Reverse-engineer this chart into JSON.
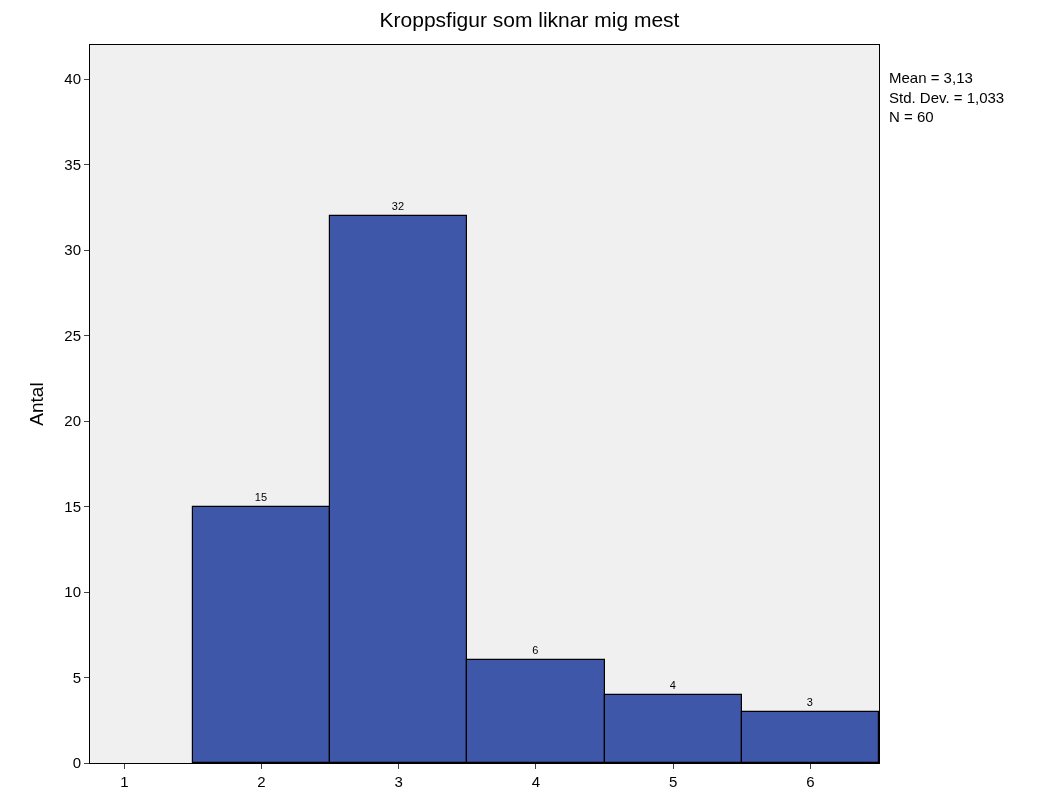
{
  "chart_data": {
    "type": "histogram",
    "title": "Kroppsfigur som liknar mig mest",
    "ylabel": "Antal",
    "bins": [
      1.5,
      2.5,
      3.5,
      4.5,
      5.5,
      6.5
    ],
    "values": [
      15,
      32,
      6,
      4,
      3
    ],
    "color": "#3f57a8",
    "xlim": [
      0.75,
      6.5
    ],
    "xticks": [
      1,
      2,
      3,
      4,
      5,
      6
    ],
    "ylim": [
      0,
      42
    ],
    "yticks": [
      0,
      5,
      10,
      15,
      20,
      25,
      30,
      35,
      40
    ],
    "grid": false,
    "data_labels": true,
    "annotations": [
      "Mean = 3,13",
      "Std. Dev. = 1,033",
      "N = 60"
    ]
  }
}
